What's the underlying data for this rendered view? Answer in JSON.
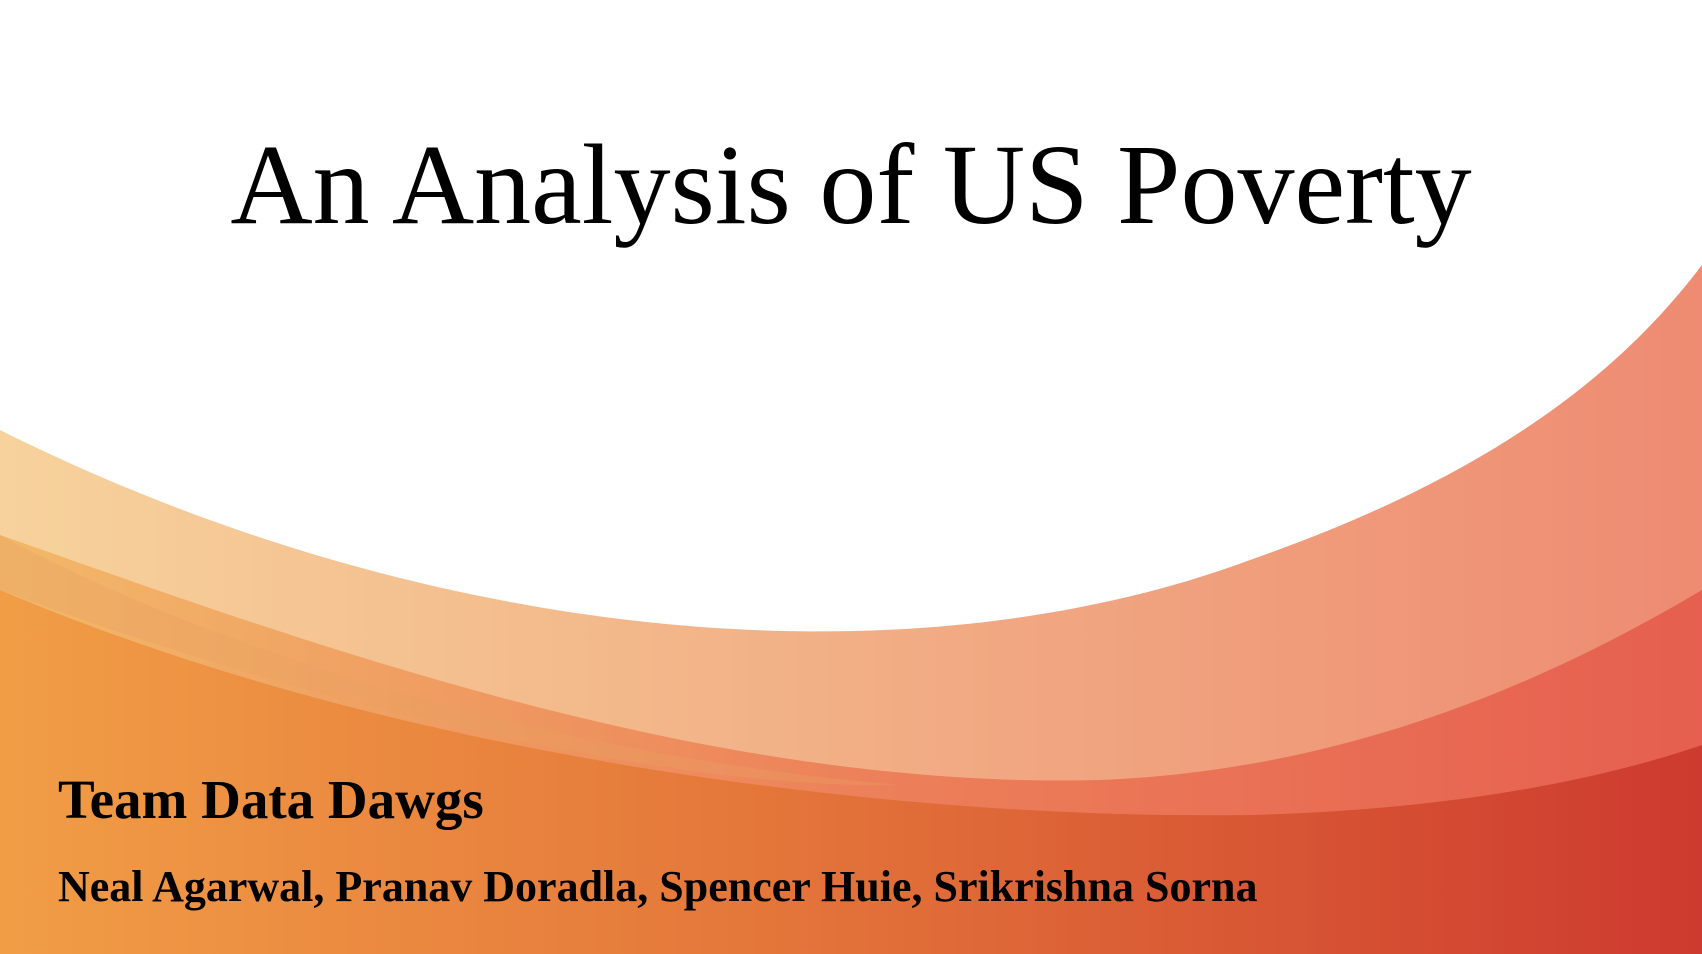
{
  "slide": {
    "title": "An Analysis of US Poverty",
    "team_name": "Team Data Dawgs",
    "members": "Neal Agarwal, Pranav Doradla, Spencer Huie, Srikrishna Sorna"
  },
  "colors": {
    "background": "#ffffff",
    "text": "#000000",
    "wave_light_left": "#f6cf97",
    "wave_light_right": "#ee8e74",
    "wave_mid_left": "#f1b162",
    "wave_mid_right": "#e65d4d",
    "wave_dark_left": "#f0a048",
    "wave_dark_right": "#cf3a2e"
  }
}
